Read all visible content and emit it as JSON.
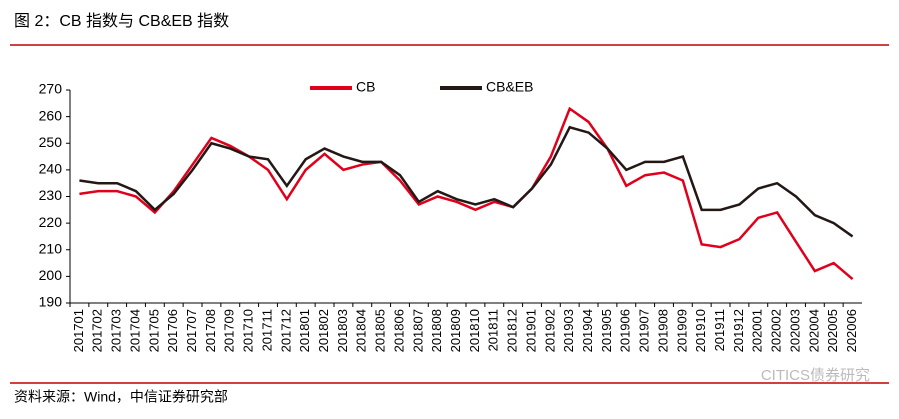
{
  "chart_data": {
    "type": "line",
    "title": "图 2：CB 指数与 CB&EB 指数",
    "source": "资料来源：Wind，中信证券研究部",
    "watermark": "CITICS债券研究",
    "categories": [
      "201701",
      "201702",
      "201703",
      "201704",
      "201705",
      "201706",
      "201707",
      "201708",
      "201709",
      "201710",
      "201711",
      "201712",
      "201801",
      "201802",
      "201803",
      "201804",
      "201805",
      "201806",
      "201807",
      "201808",
      "201809",
      "201810",
      "201811",
      "201812",
      "201901",
      "201902",
      "201903",
      "201904",
      "201905",
      "201906",
      "201907",
      "201908",
      "201909",
      "201910",
      "201911",
      "201912",
      "202001",
      "202002",
      "202003",
      "202004",
      "202005",
      "202006"
    ],
    "series": [
      {
        "name": "CB",
        "color": "#e0001b",
        "values": [
          231,
          232,
          232,
          230,
          224,
          232,
          242,
          252,
          249,
          245,
          240,
          229,
          240,
          246,
          240,
          242,
          243,
          236,
          227,
          230,
          228,
          225,
          228,
          226,
          233,
          245,
          263,
          258,
          248,
          234,
          238,
          239,
          236,
          212,
          211,
          214,
          222,
          224,
          213,
          202,
          205,
          199
        ]
      },
      {
        "name": "CB&EB",
        "color": "#231815",
        "values": [
          236,
          235,
          235,
          232,
          225,
          231,
          240,
          250,
          248,
          245,
          244,
          234,
          244,
          248,
          245,
          243,
          243,
          238,
          228,
          232,
          229,
          227,
          229,
          226,
          233,
          242,
          256,
          254,
          248,
          240,
          243,
          243,
          245,
          225,
          225,
          227,
          233,
          235,
          230,
          223,
          220,
          215
        ]
      }
    ],
    "ylim": [
      190,
      270
    ],
    "yticks": [
      190,
      200,
      210,
      220,
      230,
      240,
      250,
      260,
      270
    ]
  }
}
